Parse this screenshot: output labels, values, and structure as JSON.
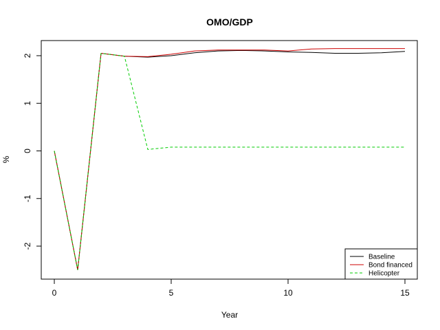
{
  "chart_data": {
    "type": "line",
    "title": "OMO/GDP",
    "xlabel": "Year",
    "ylabel": "%",
    "xlim": [
      0,
      15
    ],
    "ylim": [
      -2.5,
      2.2
    ],
    "x_ticks": [
      0,
      5,
      10,
      15
    ],
    "y_ticks": [
      -2,
      -1,
      0,
      1,
      2
    ],
    "x_tick_labels": [
      "0",
      "5",
      "10",
      "15"
    ],
    "y_tick_labels": [
      "-2",
      "-1",
      "0",
      "1",
      "2"
    ],
    "legend_position": "bottom-right",
    "x": [
      0,
      1,
      2,
      3,
      4,
      5,
      6,
      7,
      8,
      9,
      10,
      11,
      12,
      13,
      14,
      15
    ],
    "series": [
      {
        "name": "Baseline",
        "color": "#000000",
        "dash": "solid",
        "values": [
          0,
          -2.5,
          2.05,
          1.99,
          1.97,
          2.0,
          2.06,
          2.1,
          2.11,
          2.1,
          2.08,
          2.07,
          2.05,
          2.05,
          2.06,
          2.09
        ]
      },
      {
        "name": "Bond financed",
        "color": "#cc0000",
        "dash": "solid",
        "values": [
          0,
          -2.5,
          2.05,
          1.99,
          1.98,
          2.03,
          2.1,
          2.12,
          2.12,
          2.12,
          2.1,
          2.14,
          2.15,
          2.15,
          2.15,
          2.15
        ]
      },
      {
        "name": "Helicopter",
        "color": "#00cc00",
        "dash": "dashed",
        "values": [
          0,
          -2.5,
          2.05,
          1.99,
          0.03,
          0.08,
          0.08,
          0.08,
          0.08,
          0.08,
          0.08,
          0.08,
          0.08,
          0.08,
          0.08,
          0.08
        ]
      }
    ]
  }
}
